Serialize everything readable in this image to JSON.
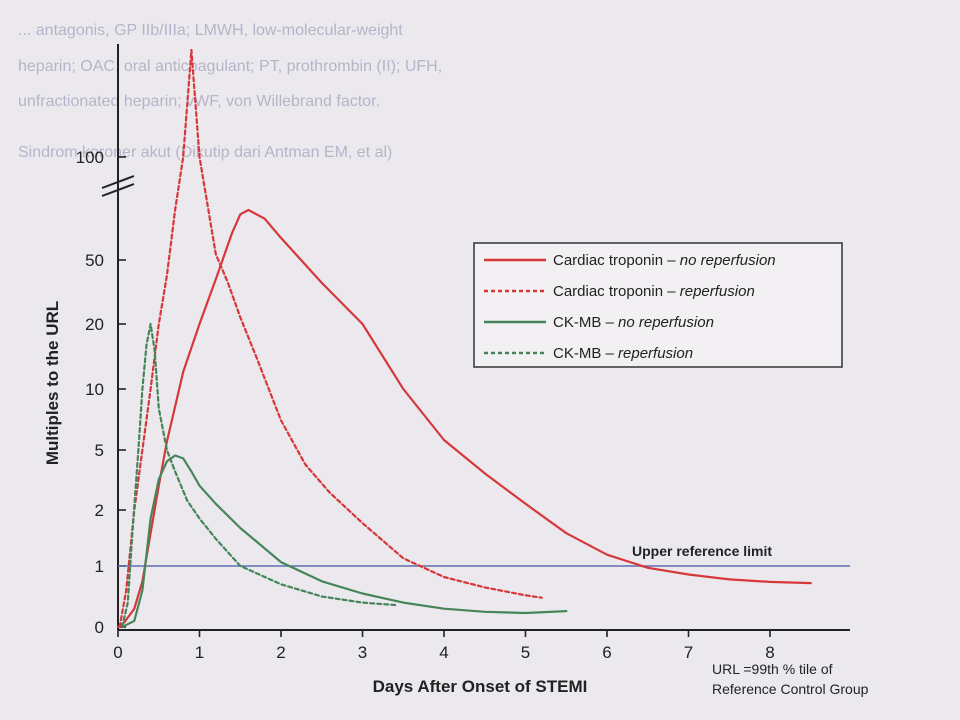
{
  "background_text": [
    "... antagonis, GP IIb/IIIa; LMWH, low-molecular-weight",
    "heparin; OAC, oral anticoagulant; PT, prothrombin (II); UFH,",
    "unfractionated heparin; vWF, von Willebrand factor.",
    "Sindrom koroner akut (Dikutip dari Antman EM, et al)"
  ],
  "chart_data": {
    "type": "line",
    "title": "",
    "xlabel": "Days After Onset of STEMI",
    "ylabel": "Multiples to the URL",
    "xlim": [
      0,
      9
    ],
    "x_ticks": [
      "0",
      "1",
      "2",
      "3",
      "4",
      "5",
      "6",
      "7",
      "8"
    ],
    "y_ticks": [
      "0",
      "1",
      "2",
      "5",
      "10",
      "20",
      "50",
      "100"
    ],
    "y_scale": "nonlinear (0, 1, 2, 5, 10, 20, 50, 100 equally spaced), axis break between 50 and 100",
    "grid": false,
    "legend_position": "upper-right",
    "reference_line": {
      "label": "Upper reference limit",
      "value": 1,
      "color": "#5b6fb0"
    },
    "note": [
      "URL =99th % tile of",
      "Reference Control Group"
    ],
    "series": [
      {
        "name": "Cardiac troponin – no reperfusion",
        "color": "#d6383a",
        "dash": "solid",
        "points": [
          [
            0,
            0
          ],
          [
            0.08,
            0.08
          ],
          [
            0.2,
            0.3
          ],
          [
            0.3,
            0.75
          ],
          [
            0.4,
            1.5
          ],
          [
            0.5,
            2.9
          ],
          [
            0.6,
            5.5
          ],
          [
            0.8,
            12
          ],
          [
            1.0,
            20
          ],
          [
            1.2,
            38
          ],
          [
            1.4,
            60
          ],
          [
            1.5,
            68
          ],
          [
            1.6,
            70
          ],
          [
            1.8,
            66
          ],
          [
            2.0,
            58
          ],
          [
            2.5,
            36
          ],
          [
            3.0,
            20
          ],
          [
            3.5,
            10
          ],
          [
            4.0,
            5.6
          ],
          [
            4.5,
            3.5
          ],
          [
            5.0,
            2.2
          ],
          [
            5.5,
            1.5
          ],
          [
            6.0,
            1.15
          ],
          [
            6.5,
            0.97
          ],
          [
            7.0,
            0.86
          ],
          [
            7.5,
            0.78
          ],
          [
            8.0,
            0.74
          ],
          [
            8.5,
            0.72
          ]
        ]
      },
      {
        "name": "Cardiac troponin – reperfusion",
        "color": "#d6383a",
        "dash": "dashed",
        "points": [
          [
            0.02,
            0
          ],
          [
            0.1,
            0.6
          ],
          [
            0.2,
            2
          ],
          [
            0.3,
            5
          ],
          [
            0.4,
            10
          ],
          [
            0.5,
            20
          ],
          [
            0.6,
            40
          ],
          [
            0.7,
            70
          ],
          [
            0.8,
            100
          ],
          [
            0.9,
            120
          ],
          [
            1.0,
            100
          ],
          [
            1.1,
            72
          ],
          [
            1.2,
            52
          ],
          [
            1.35,
            36
          ],
          [
            1.5,
            22
          ],
          [
            1.7,
            14
          ],
          [
            2.0,
            7
          ],
          [
            2.3,
            4
          ],
          [
            2.6,
            2.6
          ],
          [
            3.0,
            1.7
          ],
          [
            3.5,
            1.1
          ],
          [
            4.0,
            0.82
          ],
          [
            4.5,
            0.65
          ],
          [
            5.0,
            0.52
          ],
          [
            5.2,
            0.48
          ]
        ]
      },
      {
        "name": "CK-MB – no reperfusion",
        "color": "#46855a",
        "dash": "solid",
        "points": [
          [
            0.05,
            0
          ],
          [
            0.2,
            0.1
          ],
          [
            0.3,
            0.6
          ],
          [
            0.4,
            1.8
          ],
          [
            0.5,
            3.2
          ],
          [
            0.6,
            4.2
          ],
          [
            0.7,
            4.6
          ],
          [
            0.8,
            4.4
          ],
          [
            0.9,
            3.6
          ],
          [
            1.0,
            2.9
          ],
          [
            1.2,
            2.2
          ],
          [
            1.5,
            1.6
          ],
          [
            2.0,
            1.05
          ],
          [
            2.5,
            0.75
          ],
          [
            3.0,
            0.55
          ],
          [
            3.5,
            0.4
          ],
          [
            4.0,
            0.3
          ],
          [
            4.5,
            0.25
          ],
          [
            5.0,
            0.23
          ],
          [
            5.5,
            0.26
          ]
        ]
      },
      {
        "name": "CK-MB – reperfusion",
        "color": "#46855a",
        "dash": "dashed",
        "points": [
          [
            0.05,
            0
          ],
          [
            0.12,
            0.4
          ],
          [
            0.18,
            1.6
          ],
          [
            0.25,
            5
          ],
          [
            0.3,
            10
          ],
          [
            0.35,
            16
          ],
          [
            0.4,
            20
          ],
          [
            0.45,
            15
          ],
          [
            0.5,
            8
          ],
          [
            0.6,
            5
          ],
          [
            0.7,
            3.6
          ],
          [
            0.85,
            2.3
          ],
          [
            1.0,
            1.8
          ],
          [
            1.2,
            1.4
          ],
          [
            1.5,
            1.0
          ],
          [
            2.0,
            0.7
          ],
          [
            2.5,
            0.5
          ],
          [
            3.0,
            0.4
          ],
          [
            3.4,
            0.36
          ]
        ]
      }
    ]
  }
}
